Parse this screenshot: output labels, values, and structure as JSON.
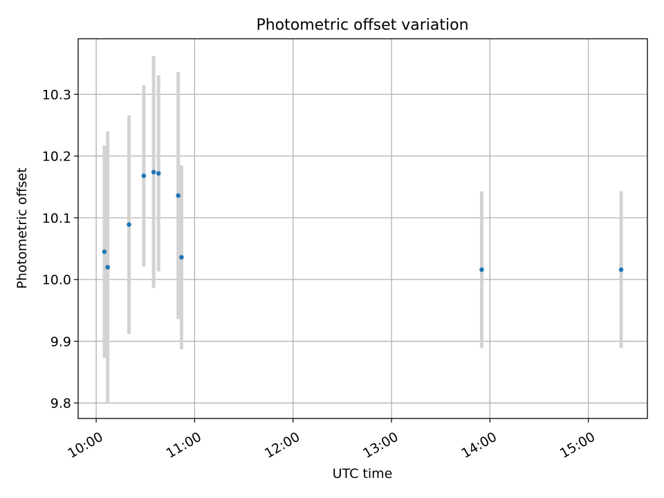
{
  "chart_data": {
    "type": "scatter",
    "title": "Photometric offset variation",
    "xlabel": "UTC time",
    "ylabel": "Photometric offset",
    "grid": true,
    "legend": "none",
    "xlim": [
      "09:49",
      "15:36"
    ],
    "ylim": [
      9.775,
      10.39
    ],
    "x_ticks": [
      "10:00",
      "11:00",
      "12:00",
      "13:00",
      "14:00",
      "15:00"
    ],
    "y_ticks": [
      "9.8",
      "9.9",
      "10.0",
      "10.1",
      "10.2",
      "10.3"
    ],
    "y_tick_values": [
      9.8,
      9.9,
      10.0,
      10.1,
      10.2,
      10.3
    ],
    "points": [
      {
        "time": "10:05",
        "y": 10.045,
        "yerr": 0.172
      },
      {
        "time": "10:07",
        "y": 10.02,
        "yerr": 0.22
      },
      {
        "time": "10:20",
        "y": 10.089,
        "yerr": 0.177
      },
      {
        "time": "10:29",
        "y": 10.168,
        "yerr": 0.147
      },
      {
        "time": "10:35",
        "y": 10.174,
        "yerr": 0.188
      },
      {
        "time": "10:38",
        "y": 10.172,
        "yerr": 0.159
      },
      {
        "time": "10:50",
        "y": 10.136,
        "yerr": 0.2
      },
      {
        "time": "10:52",
        "y": 10.036,
        "yerr": 0.149
      },
      {
        "time": "13:55",
        "y": 10.016,
        "yerr": 0.127
      },
      {
        "time": "15:20",
        "y": 10.016,
        "yerr": 0.127
      }
    ],
    "colors": {
      "marker": "#1f77b4",
      "errorbar": "#d3d3d3",
      "grid": "#b0b0b0",
      "axes": "#000000"
    }
  }
}
